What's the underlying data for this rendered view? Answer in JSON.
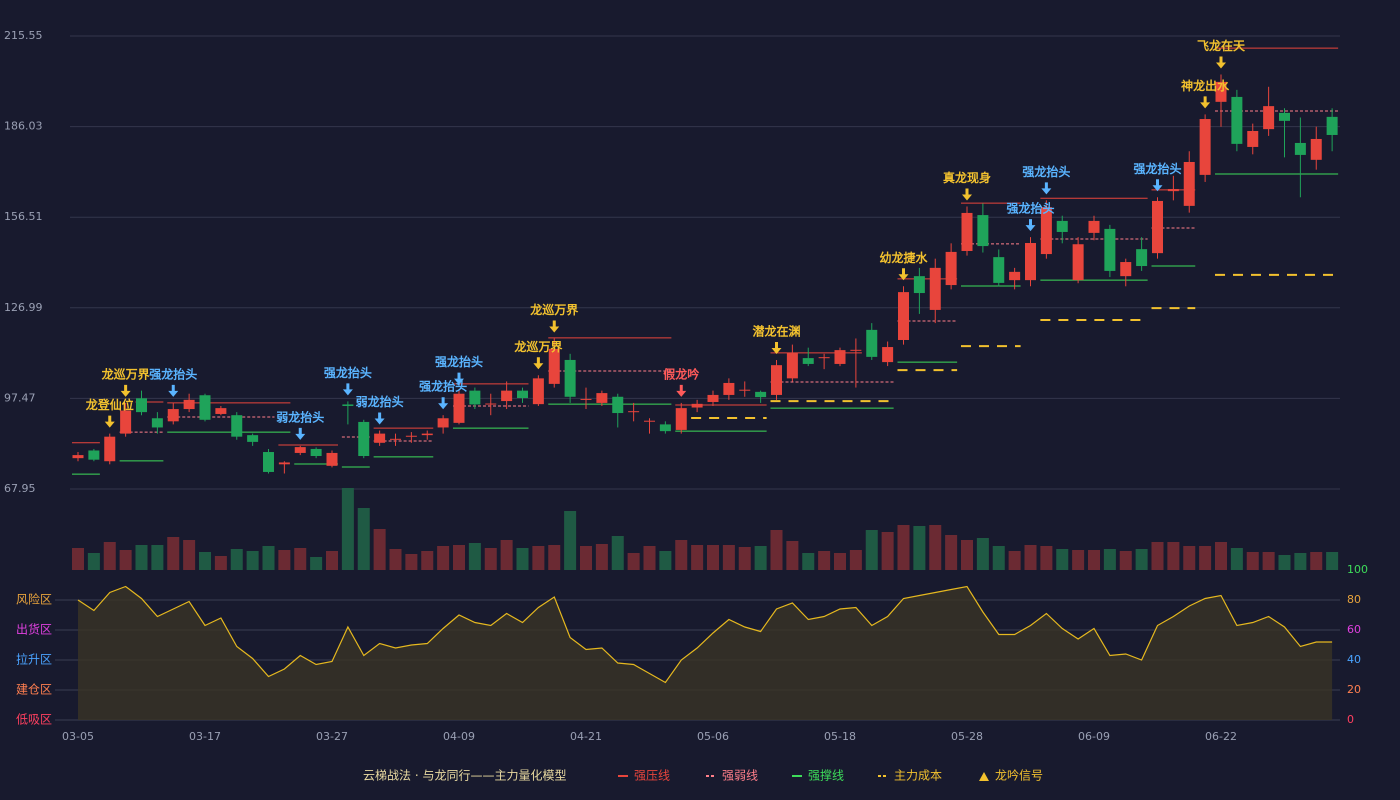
{
  "chart_data": [
    {
      "type": "candlestick",
      "caption": "云梯战法 · 与龙同行——主力量化模型",
      "categories": [
        "03-05",
        null,
        null,
        null,
        null,
        null,
        null,
        null,
        "03-17",
        null,
        null,
        null,
        null,
        null,
        null,
        null,
        "03-27",
        null,
        null,
        null,
        null,
        null,
        null,
        null,
        "04-09",
        null,
        null,
        null,
        null,
        null,
        null,
        null,
        "04-21",
        null,
        null,
        null,
        null,
        null,
        null,
        null,
        "05-06",
        null,
        null,
        null,
        null,
        null,
        null,
        null,
        "05-18",
        null,
        null,
        null,
        null,
        null,
        null,
        null,
        "05-28",
        null,
        null,
        null,
        null,
        null,
        null,
        null,
        "06-09",
        null,
        null,
        null,
        null,
        null,
        null,
        null,
        "06-22",
        null,
        null,
        null,
        null,
        null,
        null,
        null
      ],
      "open": [
        78,
        80.5,
        77,
        86,
        97.5,
        91,
        90,
        94,
        98.5,
        92.4,
        92,
        85.5,
        80,
        76,
        79.7,
        81,
        75.5,
        95.5,
        89.8,
        83,
        84,
        85,
        85.5,
        88,
        89.5,
        100,
        95.6,
        96.6,
        100,
        95.6,
        102.2,
        110,
        97,
        96,
        98,
        93,
        90,
        89,
        87.2,
        94.5,
        96.3,
        98.6,
        100,
        99.6,
        98.6,
        104,
        110.6,
        110.6,
        108.7,
        113,
        119.8,
        109.3,
        116.5,
        137.3,
        126.3,
        134.4,
        145.5,
        157.2,
        143.5,
        136,
        136,
        144.5,
        155.3,
        136,
        151.4,
        152.7,
        137.3,
        146.1,
        144.8,
        165,
        160.2,
        170.3,
        194.1,
        195.7,
        179.4,
        185.2,
        190.5,
        180.7,
        175.2,
        189.2
      ],
      "close": [
        79,
        77.5,
        85,
        93.5,
        93,
        88,
        94,
        97,
        90.5,
        94.3,
        85,
        83.3,
        73.5,
        76.6,
        81.6,
        78.7,
        79.7,
        95,
        78.7,
        86,
        84.3,
        85.3,
        86,
        91,
        99,
        95.5,
        95.8,
        100,
        97.6,
        104,
        113.6,
        98,
        97.3,
        99.2,
        92.7,
        93.3,
        90.2,
        86.8,
        94.3,
        95.7,
        98.6,
        102.5,
        100.3,
        97.9,
        108.3,
        112.3,
        108.7,
        110.9,
        113.2,
        113.3,
        111,
        114.2,
        132.1,
        131.8,
        140,
        145.2,
        157.9,
        147.1,
        135.1,
        138.7,
        148.1,
        159.8,
        151.7,
        147.7,
        155.3,
        139,
        141.9,
        140.6,
        161.8,
        165.7,
        174.5,
        188.5,
        200.6,
        180.4,
        184.6,
        192.7,
        187.9,
        176.8,
        182,
        183.3
      ],
      "high": [
        80,
        81,
        86,
        96,
        100,
        93,
        96,
        99,
        99,
        95,
        93,
        86,
        81,
        77,
        82,
        81.5,
        80.5,
        96.5,
        90.5,
        87,
        86,
        86.5,
        87,
        92,
        100,
        101,
        99,
        103,
        101,
        105,
        117,
        112,
        101,
        100,
        99,
        96,
        91,
        90,
        96,
        97,
        100,
        104,
        103,
        100,
        110,
        115,
        114,
        112,
        114,
        117,
        122,
        116,
        134,
        140,
        143,
        148,
        160,
        161,
        146,
        140,
        150,
        162,
        157,
        150,
        157,
        154,
        143,
        150,
        163,
        170,
        178,
        190,
        203,
        198,
        187,
        199,
        192,
        189,
        186,
        192
      ],
      "low": [
        77,
        77,
        76,
        85,
        92,
        86,
        89,
        93,
        90,
        92,
        84,
        82,
        73,
        73,
        79,
        78,
        75,
        89,
        78,
        82,
        82,
        83,
        84,
        86,
        89,
        94,
        92,
        94,
        96,
        95,
        101,
        96,
        94,
        95,
        88,
        90,
        86,
        86,
        86,
        93,
        95,
        97,
        98,
        96,
        97,
        103,
        108,
        107,
        108,
        101,
        110,
        108,
        115,
        125,
        122,
        133,
        144,
        145,
        134,
        133,
        134,
        143,
        148,
        135,
        149,
        137,
        134,
        139,
        143,
        162,
        158,
        168,
        186,
        178,
        177,
        183,
        176,
        163,
        172,
        178
      ],
      "up_color": "#e8453c",
      "down_color": "#1fa35a",
      "ylim": [
        67.95,
        215.55
      ],
      "yticks": [
        67.95,
        97.47,
        126.99,
        156.51,
        186.03,
        215.55
      ],
      "grid": true,
      "lines": [
        {
          "name": "强压线",
          "color": "#e8453c",
          "dashed": false,
          "segments": [
            {
              "from": 0,
              "to": 1,
              "value": 83
            },
            {
              "from": 4,
              "to": 5,
              "value": 96.3
            },
            {
              "from": 6,
              "to": 13,
              "value": 96
            },
            {
              "from": 13,
              "to": 16,
              "value": 82.3
            },
            {
              "from": 19,
              "to": 22,
              "value": 87.8
            },
            {
              "from": 24,
              "to": 28,
              "value": 102.2
            },
            {
              "from": 30,
              "to": 37,
              "value": 117.2
            },
            {
              "from": 38,
              "to": 43,
              "value": 95.3
            },
            {
              "from": 44,
              "to": 49,
              "value": 112.3
            },
            {
              "from": 52,
              "to": 55,
              "value": 136.4
            },
            {
              "from": 56,
              "to": 59,
              "value": 161.1
            },
            {
              "from": 61,
              "to": 67,
              "value": 162.7
            },
            {
              "from": 68,
              "to": 70,
              "value": 165.4
            },
            {
              "from": 72,
              "to": 79,
              "value": 211.6
            }
          ]
        },
        {
          "name": "强弱线",
          "color": "#ff7f8a",
          "dashed": true,
          "segments": [
            {
              "from": 3,
              "to": 5,
              "value": 86.5
            },
            {
              "from": 6,
              "to": 12,
              "value": 91.4
            },
            {
              "from": 17,
              "to": 18,
              "value": 84.9
            },
            {
              "from": 19,
              "to": 22,
              "value": 83.6
            },
            {
              "from": 24,
              "to": 28,
              "value": 95
            },
            {
              "from": 30,
              "to": 37,
              "value": 106.4
            },
            {
              "from": 44,
              "to": 51,
              "value": 102.8
            },
            {
              "from": 52,
              "to": 55,
              "value": 122.7
            },
            {
              "from": 56,
              "to": 59,
              "value": 147.8
            },
            {
              "from": 61,
              "to": 67,
              "value": 149.4
            },
            {
              "from": 68,
              "to": 70,
              "value": 153
            },
            {
              "from": 72,
              "to": 79,
              "value": 191.1
            }
          ]
        },
        {
          "name": "强撑线",
          "color": "#3ddc5a",
          "dashed": false,
          "segments": [
            {
              "from": 0,
              "to": 1,
              "value": 72.8
            },
            {
              "from": 3,
              "to": 5,
              "value": 77.1
            },
            {
              "from": 6,
              "to": 13,
              "value": 86.5
            },
            {
              "from": 14,
              "to": 16,
              "value": 76.1
            },
            {
              "from": 17,
              "to": 18,
              "value": 75.1
            },
            {
              "from": 19,
              "to": 22,
              "value": 78.4
            },
            {
              "from": 24,
              "to": 28,
              "value": 87.8
            },
            {
              "from": 30,
              "to": 37,
              "value": 95.6
            },
            {
              "from": 38,
              "to": 43,
              "value": 86.8
            },
            {
              "from": 44,
              "to": 51,
              "value": 94.3
            },
            {
              "from": 52,
              "to": 55,
              "value": 109.3
            },
            {
              "from": 56,
              "to": 59,
              "value": 134.1
            },
            {
              "from": 61,
              "to": 67,
              "value": 136
            },
            {
              "from": 68,
              "to": 70,
              "value": 140.6
            },
            {
              "from": 72,
              "to": 79,
              "value": 170.6
            }
          ]
        },
        {
          "name": "主力成本",
          "color": "#f2c12e",
          "dashed": true,
          "segments": [
            {
              "from": 39,
              "to": 43,
              "value": 91.1
            },
            {
              "from": 44,
              "to": 51,
              "value": 96.6
            },
            {
              "from": 52,
              "to": 55,
              "value": 106.7
            },
            {
              "from": 56,
              "to": 59,
              "value": 114.5
            },
            {
              "from": 61,
              "to": 67,
              "value": 123
            },
            {
              "from": 68,
              "to": 70,
              "value": 126.9
            },
            {
              "from": 72,
              "to": 79,
              "value": 137.7
            }
          ]
        }
      ],
      "signal_name": "龙吟信号",
      "signal_color": "#f2c12e",
      "signals": [
        {
          "index": 2,
          "label": "龙登仙位",
          "color": "#f2c12e"
        },
        {
          "index": 3,
          "label": "龙巡万界",
          "color": "#f2c12e"
        },
        {
          "index": 6,
          "label": "强龙抬头",
          "color": "#5ab4ff"
        },
        {
          "index": 14,
          "label": "弱龙抬头",
          "color": "#5ab4ff"
        },
        {
          "index": 17,
          "label": "强龙抬头",
          "color": "#5ab4ff"
        },
        {
          "index": 19,
          "label": "弱龙抬头",
          "color": "#5ab4ff"
        },
        {
          "index": 23,
          "label": "强龙抬头",
          "color": "#5ab4ff"
        },
        {
          "index": 24,
          "label": "强龙抬头",
          "color": "#5ab4ff"
        },
        {
          "index": 29,
          "label": "龙巡万界",
          "color": "#f2c12e"
        },
        {
          "index": 30,
          "label": "龙巡万界",
          "color": "#f2c12e"
        },
        {
          "index": 38,
          "label": "假龙吟",
          "color": "#ff5a5a"
        },
        {
          "index": 44,
          "label": "潜龙在渊",
          "color": "#f2c12e"
        },
        {
          "index": 52,
          "label": "幼龙捷水",
          "color": "#f2c12e"
        },
        {
          "index": 56,
          "label": "真龙现身",
          "color": "#f2c12e"
        },
        {
          "index": 60,
          "label": "强龙抬头",
          "color": "#5ab4ff"
        },
        {
          "index": 61,
          "label": "强龙抬头",
          "color": "#5ab4ff"
        },
        {
          "index": 68,
          "label": "强龙抬头",
          "color": "#5ab4ff"
        },
        {
          "index": 71,
          "label": "神龙出水",
          "color": "#f2c12e"
        },
        {
          "index": 72,
          "label": "飞龙在天",
          "color": "#f2c12e"
        }
      ]
    },
    {
      "type": "bar",
      "up_color": "#6b2a33",
      "down_color": "#1f5a44",
      "values": [
        22,
        17,
        28,
        20,
        25,
        25,
        33,
        30,
        18,
        14,
        21,
        19,
        24,
        20,
        22,
        13,
        19,
        82,
        62,
        41,
        21,
        16,
        19,
        24,
        25,
        27,
        22,
        30,
        22,
        24,
        25,
        59,
        24,
        26,
        34,
        17,
        24,
        19,
        30,
        25,
        25,
        25,
        23,
        24,
        40,
        29,
        17,
        19,
        17,
        20,
        40,
        38,
        45,
        44,
        45,
        35,
        30,
        32,
        24,
        19,
        25,
        24,
        21,
        20,
        20,
        21,
        19,
        21,
        28,
        28,
        24,
        24,
        28,
        22,
        18,
        18,
        15,
        17,
        18,
        18
      ]
    },
    {
      "type": "area",
      "color": "#e5b81f",
      "fill": "#3a3326",
      "values": [
        80,
        73,
        85,
        89,
        81,
        69,
        74,
        79,
        63,
        68,
        49,
        41,
        29,
        34,
        43,
        37,
        39,
        62,
        43,
        51,
        48,
        50,
        51,
        61,
        70,
        65,
        63,
        71,
        65,
        75,
        82,
        55,
        47,
        48,
        38,
        37,
        31,
        25,
        40,
        48,
        58,
        67,
        62,
        59,
        74,
        78,
        67,
        69,
        74,
        75,
        63,
        69,
        81,
        83,
        85,
        87,
        89,
        72,
        57,
        57,
        63,
        71,
        61,
        54,
        61,
        43,
        44,
        40,
        63,
        69,
        76,
        81,
        83,
        63,
        65,
        69,
        62,
        49,
        52,
        52
      ],
      "ylim": [
        0,
        100
      ],
      "yticks": [
        {
          "value": 80,
          "label": "风险区"
        },
        {
          "value": 60,
          "label": "出货区"
        },
        {
          "value": 40,
          "label": "拉升区"
        },
        {
          "value": 20,
          "label": "建仓区"
        },
        {
          "value": 0,
          "label": "低吸区"
        }
      ],
      "ytick_colors": [
        "#e8a33c",
        "#e040e0",
        "#4aa3ff",
        "#ff7f50",
        "#ff4060"
      ],
      "y2lim": [
        0,
        100
      ],
      "y2ticks": [
        0,
        20,
        40,
        60,
        80,
        100
      ],
      "y2tick_colors": [
        "#ff4060",
        "#ff7f50",
        "#4aa3ff",
        "#e040e0",
        "#e8a33c",
        "#3ddc5a"
      ]
    }
  ]
}
